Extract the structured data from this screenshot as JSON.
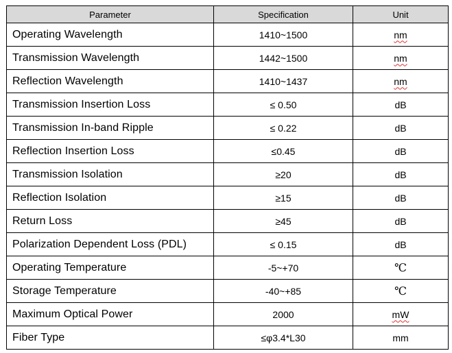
{
  "table": {
    "headers": {
      "parameter": "Parameter",
      "specification": "Specification",
      "unit": "Unit"
    },
    "header_bg": "#d9d9d9",
    "spellcheck_underline_color": "#e03030",
    "rows": [
      {
        "parameter": "Operating Wavelength",
        "specification": "1410~1500",
        "unit": "nm",
        "unit_flagged": true
      },
      {
        "parameter": "Transmission Wavelength",
        "specification": "1442~1500",
        "unit": "nm",
        "unit_flagged": true
      },
      {
        "parameter": "Reflection Wavelength",
        "specification": "1410~1437",
        "unit": "nm",
        "unit_flagged": true
      },
      {
        "parameter": "Transmission Insertion Loss",
        "specification": "≤ 0.50",
        "unit": "dB",
        "unit_flagged": false
      },
      {
        "parameter": "Transmission In-band Ripple",
        "specification": "≤ 0.22",
        "unit": "dB",
        "unit_flagged": false
      },
      {
        "parameter": "Reflection Insertion Loss",
        "specification": "≤0.45",
        "unit": "dB",
        "unit_flagged": false
      },
      {
        "parameter": "Transmission Isolation",
        "specification": "≥20",
        "unit": "dB",
        "unit_flagged": false
      },
      {
        "parameter": "Reflection Isolation",
        "specification": "≥15",
        "unit": "dB",
        "unit_flagged": false
      },
      {
        "parameter": "Return Loss",
        "specification": "≥45",
        "unit": "dB",
        "unit_flagged": false
      },
      {
        "parameter": "Polarization Dependent Loss (PDL)",
        "specification": "≤ 0.15",
        "unit": "dB",
        "unit_flagged": false
      },
      {
        "parameter": "Operating Temperature",
        "specification": "-5~+70",
        "unit": "℃",
        "unit_flagged": false
      },
      {
        "parameter": "Storage Temperature",
        "specification": "-40~+85",
        "unit": "℃",
        "unit_flagged": false
      },
      {
        "parameter": "Maximum Optical Power",
        "specification": "2000",
        "unit": "mW",
        "unit_flagged": true
      },
      {
        "parameter": "Fiber Type",
        "specification": "≤φ3.4*L30",
        "unit": "mm",
        "unit_flagged": false
      }
    ]
  }
}
